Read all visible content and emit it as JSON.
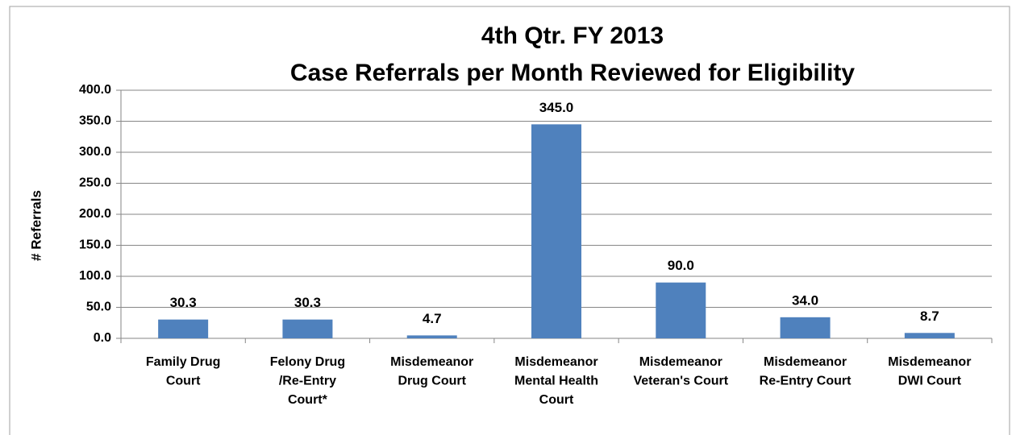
{
  "chart_data": {
    "type": "bar",
    "title": [
      "4th Qtr. FY 2013",
      "Case Referrals per Month Reviewed for Eligibility"
    ],
    "y_label": "# Referrals",
    "categories": [
      [
        "Family Drug",
        "Court"
      ],
      [
        "Felony Drug",
        "/Re-Entry",
        "Court*"
      ],
      [
        "Misdemeanor",
        "Drug Court"
      ],
      [
        "Misdemeanor",
        "Mental Health",
        "Court"
      ],
      [
        "Misdemeanor",
        "Veteran's Court"
      ],
      [
        "Misdemeanor",
        "Re-Entry Court"
      ],
      [
        "Misdemeanor",
        "DWI Court"
      ]
    ],
    "values": [
      30.3,
      30.3,
      4.7,
      345,
      90,
      34,
      8.7
    ],
    "value_labels": [
      "30.3",
      "30.3",
      "4.7",
      "345.0",
      "90.0",
      "34.0",
      "8.7"
    ],
    "color": "#4f81bd",
    "ylim": [
      0,
      400
    ],
    "yticks": [
      {
        "value": 0,
        "label": "0.0"
      },
      {
        "value": 50,
        "label": "50.0"
      },
      {
        "value": 100,
        "label": "100.0"
      },
      {
        "value": 150,
        "label": "150.0"
      },
      {
        "value": 200,
        "label": "200.0"
      },
      {
        "value": 250,
        "label": "250.0"
      },
      {
        "value": 300,
        "label": "300.0"
      },
      {
        "value": 350,
        "label": "350.0"
      },
      {
        "value": 400,
        "label": "400.0"
      }
    ],
    "grid": true
  }
}
